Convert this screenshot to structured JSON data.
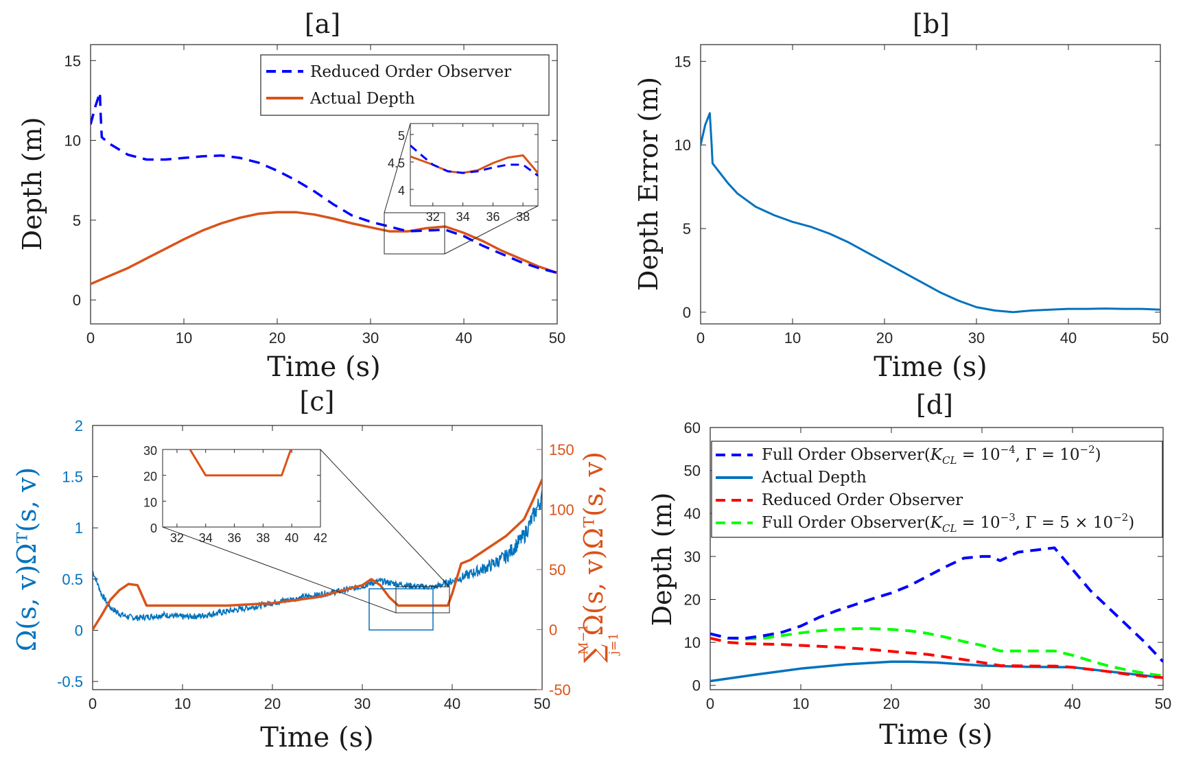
{
  "chart_data": [
    {
      "panel": "a",
      "type": "line",
      "title": "[a]",
      "xlabel": "Time (s)",
      "ylabel": "Depth (m)",
      "xlim": [
        0,
        50
      ],
      "ylim": [
        -1.5,
        16
      ],
      "xticks": [
        0,
        10,
        20,
        30,
        40,
        50
      ],
      "yticks": [
        0,
        5,
        10,
        15
      ],
      "legend_position": "top-right",
      "series": [
        {
          "name": "Reduced Order Observer",
          "style": "dashed",
          "color": "#0000ff",
          "x": [
            0,
            0.5,
            1,
            1.05,
            1.2,
            2,
            4,
            6,
            8,
            10,
            12,
            14,
            16,
            18,
            20,
            22,
            24,
            26,
            28,
            30,
            32,
            34,
            36,
            38,
            40,
            42,
            44,
            46,
            48,
            50
          ],
          "y": [
            11,
            12.1,
            13,
            12,
            10.2,
            9.8,
            9.1,
            8.8,
            8.8,
            8.9,
            9.0,
            9.05,
            8.9,
            8.6,
            8.1,
            7.5,
            6.8,
            6.0,
            5.3,
            4.9,
            4.6,
            4.3,
            4.35,
            4.4,
            4.0,
            3.4,
            2.9,
            2.4,
            2.0,
            1.7
          ]
        },
        {
          "name": "Actual Depth",
          "style": "solid",
          "color": "#d95319",
          "x": [
            0,
            2,
            4,
            6,
            8,
            10,
            12,
            14,
            16,
            18,
            20,
            22,
            24,
            26,
            28,
            30,
            32,
            34,
            36,
            38,
            40,
            42,
            44,
            46,
            48,
            50
          ],
          "y": [
            1.0,
            1.5,
            2.0,
            2.6,
            3.2,
            3.8,
            4.35,
            4.8,
            5.15,
            5.4,
            5.5,
            5.5,
            5.35,
            5.1,
            4.8,
            4.55,
            4.3,
            4.3,
            4.5,
            4.6,
            4.2,
            3.7,
            3.1,
            2.6,
            2.1,
            1.7
          ]
        }
      ],
      "inset": {
        "xlim": [
          30.5,
          39
        ],
        "ylim": [
          3.7,
          5.2
        ],
        "xticks": [
          32,
          34,
          36,
          38
        ],
        "yticks": [
          4,
          4.5,
          5
        ],
        "ytick_labels": [
          "4",
          "4.5",
          "5"
        ],
        "series": [
          {
            "name": "Reduced Order Observer",
            "x": [
              30.5,
              31,
              32,
              33,
              34,
              35,
              36,
              37,
              38,
              39
            ],
            "y": [
              4.8,
              4.68,
              4.45,
              4.33,
              4.3,
              4.33,
              4.4,
              4.45,
              4.45,
              4.25
            ]
          },
          {
            "name": "Actual Depth",
            "x": [
              30.5,
              31,
              32,
              33,
              34,
              35,
              36,
              37,
              38,
              39
            ],
            "y": [
              4.6,
              4.55,
              4.45,
              4.33,
              4.3,
              4.35,
              4.48,
              4.58,
              4.62,
              4.3
            ]
          }
        ]
      }
    },
    {
      "panel": "b",
      "type": "line",
      "title": "[b]",
      "xlabel": "Time (s)",
      "ylabel": "Depth Error (m)",
      "xlim": [
        0,
        50
      ],
      "ylim": [
        -0.7,
        16
      ],
      "xticks": [
        0,
        10,
        20,
        30,
        40,
        50
      ],
      "yticks": [
        0,
        5,
        10,
        15
      ],
      "series": [
        {
          "name": "Depth Error",
          "style": "solid",
          "color": "#0072bd",
          "x": [
            0,
            0.5,
            1,
            1.2,
            1.3,
            2,
            3,
            4,
            5,
            6,
            8,
            10,
            12,
            14,
            16,
            18,
            20,
            22,
            24,
            26,
            28,
            30,
            32,
            34,
            36,
            38,
            40,
            42,
            44,
            46,
            48,
            50
          ],
          "y": [
            10,
            11.2,
            11.9,
            10,
            8.9,
            8.4,
            7.7,
            7.1,
            6.7,
            6.3,
            5.8,
            5.4,
            5.1,
            4.7,
            4.2,
            3.6,
            3.0,
            2.4,
            1.8,
            1.2,
            0.7,
            0.3,
            0.1,
            0.0,
            0.1,
            0.15,
            0.2,
            0.2,
            0.22,
            0.2,
            0.2,
            0.15
          ]
        }
      ]
    },
    {
      "panel": "c",
      "type": "line",
      "title": "[c]",
      "xlabel": "Time (s)",
      "ylabel_left": "Ω(s, v)Ωᵀ(s, v)",
      "ylabel_right": "∑ Ω(s, v)Ωᵀ(s, v)",
      "ylabel_right_sum_upper": "M−1",
      "ylabel_right_sum_lower": "j=1",
      "xlim": [
        0,
        50
      ],
      "ylim_left": [
        -0.58,
        2
      ],
      "ylim_right": [
        -50,
        170
      ],
      "xticks": [
        0,
        10,
        20,
        30,
        40,
        50
      ],
      "yticks_left": [
        -0.5,
        0,
        0.5,
        1,
        1.5,
        2
      ],
      "yticks_right": [
        -50,
        0,
        50,
        100,
        150
      ],
      "series": [
        {
          "name": "Ω(s,v)Ωᵀ(s,v)",
          "axis": "left",
          "style": "noisy",
          "color": "#0072bd",
          "x": [
            0,
            1,
            2,
            3,
            4,
            5,
            6,
            8,
            10,
            12,
            14,
            16,
            18,
            20,
            22,
            24,
            26,
            28,
            30,
            31,
            32,
            34,
            36,
            38,
            40,
            42,
            44,
            46,
            48,
            50
          ],
          "y": [
            0.58,
            0.35,
            0.22,
            0.16,
            0.13,
            0.12,
            0.13,
            0.15,
            0.13,
            0.14,
            0.17,
            0.2,
            0.23,
            0.27,
            0.3,
            0.33,
            0.36,
            0.39,
            0.43,
            0.46,
            0.48,
            0.45,
            0.43,
            0.42,
            0.48,
            0.55,
            0.62,
            0.72,
            0.92,
            1.3
          ]
        },
        {
          "name": "∑Ω(s,v)Ωᵀ(s,v)",
          "axis": "right",
          "style": "solid",
          "color": "#d95319",
          "x": [
            0,
            1,
            2,
            3,
            4,
            5,
            6,
            10,
            15,
            20,
            25,
            28,
            30,
            31,
            32,
            33,
            34,
            35,
            38,
            39.5,
            40,
            41,
            42,
            44,
            46,
            48,
            49,
            50
          ],
          "y": [
            0,
            12,
            25,
            33,
            38,
            37,
            20,
            20,
            20,
            22,
            27,
            33,
            37,
            42,
            37,
            27,
            20,
            20,
            20,
            20,
            30,
            55,
            58,
            68,
            78,
            92,
            108,
            125
          ]
        }
      ],
      "inset": {
        "xlim": [
          31,
          42
        ],
        "ylim": [
          0,
          30
        ],
        "xticks": [
          32,
          34,
          36,
          38,
          40,
          42
        ],
        "yticks": [
          0,
          10,
          20,
          30
        ],
        "series": [
          {
            "name": "∑Ω(s,v)Ωᵀ(s,v)",
            "x": [
              32.8,
              34,
              39.3,
              40
            ],
            "y": [
              31,
              20,
              20,
              31
            ]
          }
        ]
      }
    },
    {
      "panel": "d",
      "type": "line",
      "title": "[d]",
      "xlabel": "Time (s)",
      "ylabel": "Depth (m)",
      "xlim": [
        0,
        50
      ],
      "ylim": [
        -1,
        60
      ],
      "xticks": [
        0,
        10,
        20,
        30,
        40,
        50
      ],
      "yticks": [
        0,
        10,
        20,
        30,
        40,
        50,
        60
      ],
      "legend_position": "top",
      "series": [
        {
          "name": "Full Order Observer(K_CL = 10^-4, Γ = 10^-2)",
          "legend_parts": {
            "prefix": "Full Order Observer(",
            "k": "K",
            "k_sub": "CL",
            "eq1": " = 10",
            "exp1": "−4",
            "gamma": ", Γ = 10",
            "mult": "",
            "exp2": "−2",
            "suffix": ")"
          },
          "style": "dashed",
          "color": "#0000ff",
          "x": [
            0,
            2,
            4,
            6,
            8,
            10,
            12,
            14,
            16,
            18,
            20,
            22,
            24,
            26,
            28,
            30,
            31,
            32,
            34,
            36,
            38,
            40,
            42,
            44,
            46,
            48,
            50
          ],
          "y": [
            12,
            11,
            11,
            11.6,
            12.4,
            13.8,
            15.8,
            17.4,
            18.8,
            20.2,
            21.5,
            23.2,
            25.4,
            27.6,
            29.6,
            30,
            30,
            29,
            31,
            31.5,
            32,
            27,
            22,
            18,
            14,
            10,
            5.5
          ]
        },
        {
          "name": "Actual Depth",
          "style": "solid",
          "color": "#0072bd",
          "x": [
            0,
            5,
            10,
            15,
            20,
            22,
            25,
            30,
            35,
            40,
            45,
            50
          ],
          "y": [
            1,
            2.5,
            3.9,
            4.9,
            5.5,
            5.5,
            5.3,
            4.6,
            4.3,
            4.2,
            3.0,
            1.8
          ]
        },
        {
          "name": "Reduced Order Observer",
          "style": "dashed",
          "color": "#ff0000",
          "x": [
            0,
            2,
            4,
            6,
            8,
            10,
            14,
            18,
            20,
            24,
            28,
            30,
            32,
            36,
            38,
            40,
            42,
            44,
            46,
            48,
            50
          ],
          "y": [
            11,
            10,
            9.7,
            9.6,
            9.5,
            9.3,
            8.9,
            8.3,
            7.9,
            7.2,
            6.0,
            5.3,
            4.6,
            4.5,
            4.5,
            4.2,
            3.7,
            3.2,
            2.6,
            2.1,
            1.8
          ]
        },
        {
          "name": "Full Order Observer(K_CL = 10^-3, Γ = 5 × 10^-2)",
          "legend_parts": {
            "prefix": "Full Order Observer(",
            "k": "K",
            "k_sub": "CL",
            "eq1": " = 10",
            "exp1": "−3",
            "gamma": ", Γ = ",
            "mult": "5 × 10",
            "exp2": "−2",
            "suffix": ")"
          },
          "style": "dashed",
          "color": "#00ff00",
          "x": [
            0,
            2,
            4,
            6,
            8,
            10,
            12,
            14,
            16,
            18,
            20,
            22,
            24,
            26,
            28,
            30,
            32,
            34,
            36,
            38,
            40,
            42,
            44,
            46,
            48,
            50
          ],
          "y": [
            12,
            11,
            10.8,
            11,
            11.6,
            12.2,
            12.7,
            13,
            13.2,
            13.2,
            13,
            12.7,
            12.1,
            11.2,
            10.2,
            9.3,
            8.0,
            8.0,
            8.0,
            8.0,
            7.0,
            5.7,
            4.5,
            3.6,
            2.8,
            2.2
          ]
        }
      ]
    }
  ]
}
